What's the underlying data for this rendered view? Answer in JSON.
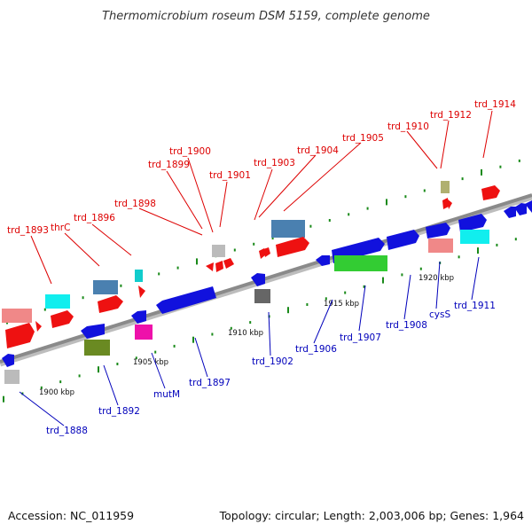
{
  "title": "Thermomicrobium roseum DSM 5159, complete genome",
  "footer": {
    "accession": "Accession: NC_011959",
    "topology": "Topology: circular; Length: 2,003,006 bp; Genes: 1,964"
  },
  "colors": {
    "top_label": "#dd0000",
    "bottom_label": "#0000bb",
    "backbone": "#8a8a8a",
    "tick_dot": "#1a8a1a"
  },
  "ticks": [
    "1900 kbp",
    "1905 kbp",
    "1910 kbp",
    "1915 kbp",
    "1920 kbp"
  ],
  "top_labels": [
    "trd_1893",
    "thrC",
    "trd_1896",
    "trd_1898",
    "trd_1899",
    "trd_1900",
    "trd_1901",
    "trd_1903",
    "trd_1904",
    "trd_1905",
    "trd_1910",
    "trd_1912",
    "trd_1914"
  ],
  "bottom_labels": [
    "trd_1888",
    "trd_1892",
    "mutM",
    "trd_1897",
    "trd_1902",
    "trd_1906",
    "trd_1907",
    "trd_1908",
    "cysS",
    "trd_1911"
  ],
  "gene_colors": {
    "red": "#ee1111",
    "blue": "#1111dd",
    "salmon": "#f08888",
    "cyan": "#11eeee",
    "steelblue": "#4a80b0",
    "olive": "#6a8a22",
    "green": "#33cc33",
    "magenta": "#ee11aa",
    "gray": "#bbbbbb",
    "darkgray": "#666666",
    "khaki": "#b0b070"
  }
}
